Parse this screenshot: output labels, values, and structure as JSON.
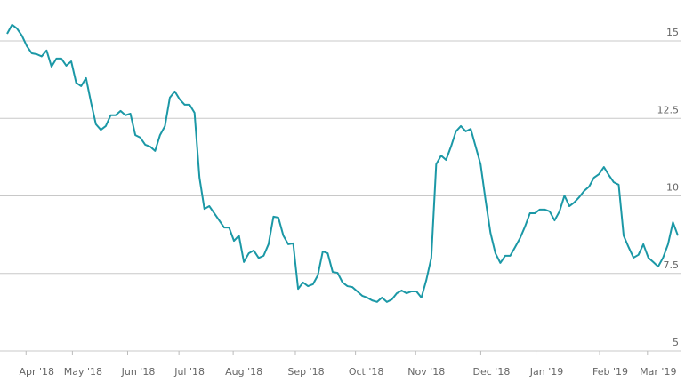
{
  "chart_data": {
    "type": "line",
    "series": [
      {
        "color": "#1b98a6",
        "values": [
          15.23,
          15.52,
          15.4,
          15.17,
          14.83,
          14.6,
          14.57,
          14.5,
          14.69,
          14.17,
          14.43,
          14.43,
          14.2,
          14.34,
          13.65,
          13.54,
          13.8,
          13.02,
          12.31,
          12.13,
          12.25,
          12.6,
          12.6,
          12.74,
          12.6,
          12.65,
          11.96,
          11.88,
          11.65,
          11.59,
          11.45,
          11.96,
          12.25,
          13.17,
          13.37,
          13.11,
          12.94,
          12.94,
          12.68,
          10.59,
          9.58,
          9.67,
          9.44,
          9.21,
          8.98,
          8.98,
          8.55,
          8.72,
          7.87,
          8.15,
          8.24,
          8.0,
          8.07,
          8.44,
          9.33,
          9.3,
          8.72,
          8.44,
          8.47,
          7.0,
          7.21,
          7.09,
          7.15,
          7.44,
          8.21,
          8.15,
          7.55,
          7.52,
          7.21,
          7.09,
          7.06,
          6.92,
          6.78,
          6.72,
          6.63,
          6.58,
          6.72,
          6.58,
          6.66,
          6.86,
          6.95,
          6.86,
          6.92,
          6.92,
          6.72,
          7.29,
          8.0,
          11.02,
          11.3,
          11.16,
          11.59,
          12.08,
          12.25,
          12.08,
          12.16,
          11.59,
          11.02,
          9.87,
          8.81,
          8.15,
          7.84,
          8.07,
          8.07,
          8.35,
          8.64,
          9.01,
          9.44,
          9.44,
          9.56,
          9.56,
          9.5,
          9.21,
          9.5,
          10.01,
          9.67,
          9.79,
          9.96,
          10.16,
          10.3,
          10.59,
          10.7,
          10.93,
          10.67,
          10.44,
          10.36,
          8.72,
          8.35,
          8.01,
          8.1,
          8.44,
          8.01,
          7.87,
          7.72,
          8.01,
          8.44,
          9.15,
          8.72
        ]
      }
    ],
    "xlim": [
      0,
      136
    ],
    "xticks": [
      {
        "value": 6,
        "label": "Apr '18"
      },
      {
        "value": 15.4,
        "label": "May '18"
      },
      {
        "value": 26.6,
        "label": "Jun '18"
      },
      {
        "value": 37,
        "label": "Jul '18"
      },
      {
        "value": 48,
        "label": "Aug '18"
      },
      {
        "value": 60.6,
        "label": "Sep '18"
      },
      {
        "value": 72.8,
        "label": "Oct '18"
      },
      {
        "value": 85,
        "label": "Nov '18"
      },
      {
        "value": 98.2,
        "label": "Dec '18"
      },
      {
        "value": 109.4,
        "label": "Jan '19"
      },
      {
        "value": 122.3,
        "label": "Feb '19"
      },
      {
        "value": 132,
        "label": "Mar '19"
      }
    ],
    "ylim": [
      5,
      16
    ],
    "yticks": [
      5,
      7.5,
      10,
      12.5,
      15
    ],
    "grid": true
  }
}
